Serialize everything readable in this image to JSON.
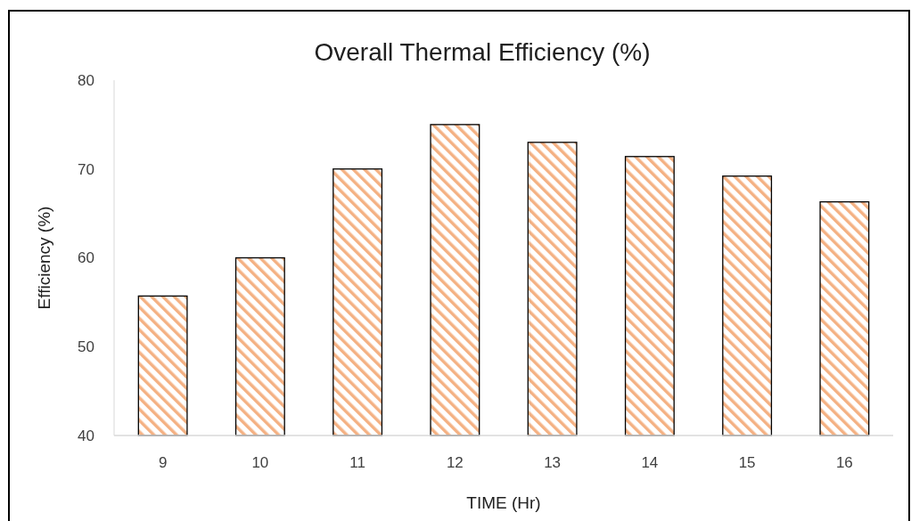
{
  "chart_data": {
    "type": "bar",
    "title": "Overall Thermal Efficiency (%)",
    "xlabel": "TIME (Hr)",
    "ylabel": "Efficiency (%)",
    "categories": [
      "9",
      "10",
      "11",
      "12",
      "13",
      "14",
      "15",
      "16"
    ],
    "values": [
      55.7,
      60,
      70,
      75,
      73,
      71.4,
      69.2,
      66.3
    ],
    "color": "#f4b183",
    "ylim": [
      40,
      80
    ],
    "yticks": [
      40,
      50,
      60,
      70,
      80
    ],
    "grid": false
  }
}
